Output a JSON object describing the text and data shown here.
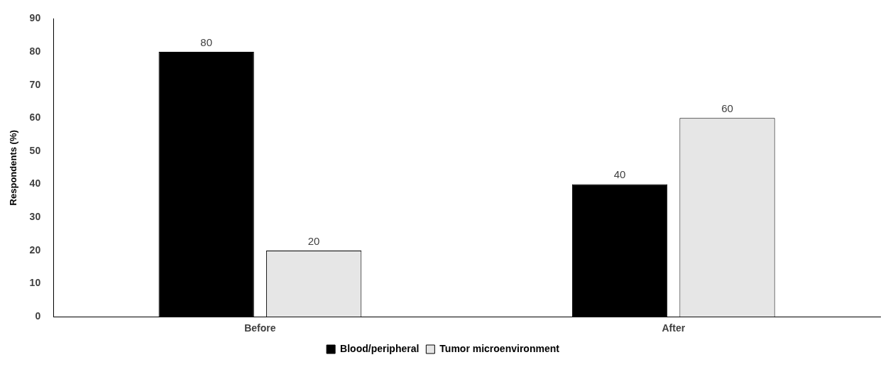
{
  "chart_data": {
    "type": "bar",
    "ylabel": "Respondents (%)",
    "categories": [
      "Before",
      "After"
    ],
    "series": [
      {
        "name": "Blood/peripheral",
        "color": "#000000",
        "values": [
          80,
          40
        ]
      },
      {
        "name": "Tumor microenvironment",
        "color": "#e6e6e6",
        "values": [
          20,
          60
        ]
      }
    ],
    "ylim": [
      0,
      90
    ],
    "yticks": [
      0,
      10,
      20,
      30,
      40,
      50,
      60,
      70,
      80,
      90
    ],
    "grid": false,
    "legend": "bottom",
    "data_labels": true
  }
}
